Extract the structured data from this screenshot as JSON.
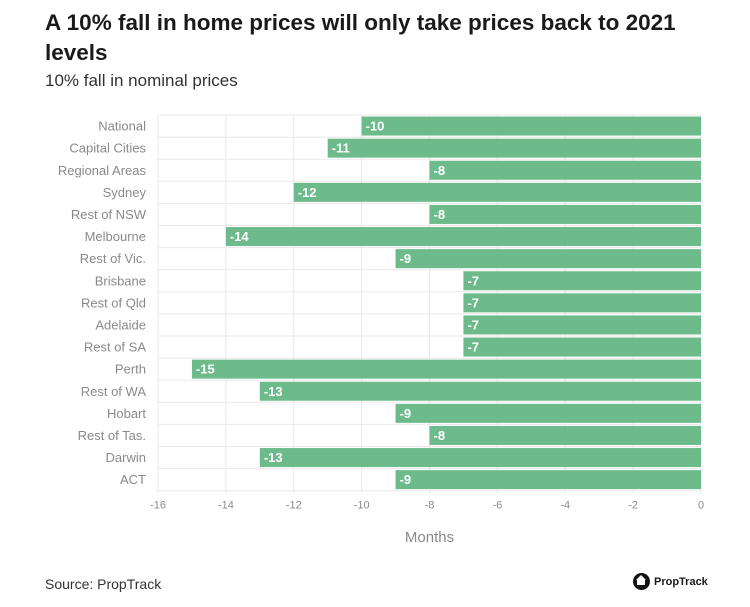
{
  "header": {
    "title": "A 10% fall in home prices will only take prices back to 2021 levels",
    "subtitle": "10% fall in nominal prices"
  },
  "footer": {
    "source": "Source: PropTrack",
    "brand": "PropTrack",
    "brand_icon": "house-logo-icon"
  },
  "colors": {
    "bar": "#6dbb8a",
    "grid": "#e8e8e8",
    "label": "#8a8a8a"
  },
  "chart_data": {
    "type": "bar",
    "orientation": "horizontal",
    "categories": [
      "National",
      "Capital Cities",
      "Regional Areas",
      "Sydney",
      "Rest of NSW",
      "Melbourne",
      "Rest of Vic.",
      "Brisbane",
      "Rest of Qld",
      "Adelaide",
      "Rest of SA",
      "Perth",
      "Rest of WA",
      "Hobart",
      "Rest of Tas.",
      "Darwin",
      "ACT"
    ],
    "values": [
      -10,
      -11,
      -8,
      -12,
      -8,
      -14,
      -9,
      -7,
      -7,
      -7,
      -7,
      -15,
      -13,
      -9,
      -8,
      -13,
      -9
    ],
    "value_labels": [
      "-10",
      "-11",
      "-8",
      "-12",
      "-8",
      "-14",
      "-9",
      "-7",
      "-7",
      "-7",
      "-7",
      "-15",
      "-13",
      "-9",
      "-8",
      "-13",
      "-9"
    ],
    "xlabel": "Months",
    "xlim": [
      -16,
      0
    ],
    "xticks": [
      -16,
      -14,
      -12,
      -10,
      -8,
      -6,
      -4,
      -2,
      0
    ],
    "xtick_labels": [
      "-16",
      "-14",
      "-12",
      "-10",
      "-8",
      "-6",
      "-4",
      "-2",
      "0"
    ],
    "grid": true
  }
}
